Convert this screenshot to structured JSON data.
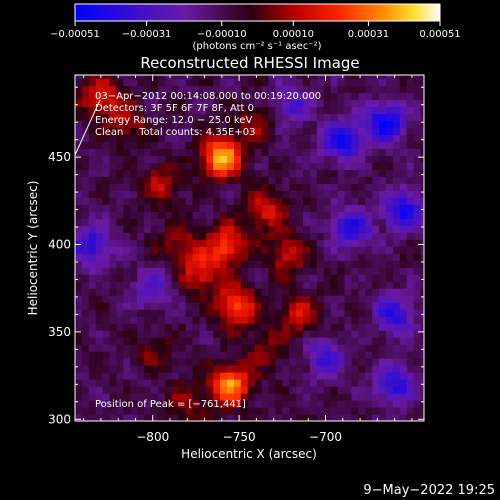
{
  "chart_data": {
    "type": "heatmap",
    "title": "Reconstructed RHESSI Image",
    "xlabel": "Heliocentric X (arcsec)",
    "ylabel": "Heliocentric Y (arcsec)",
    "xlim": [
      -845,
      -643
    ],
    "ylim": [
      299,
      497
    ],
    "x_ticks": [
      -800,
      -750,
      -700
    ],
    "y_ticks": [
      300,
      350,
      400,
      450
    ],
    "x_tick_labels": [
      "−800",
      "−750",
      "−700"
    ],
    "y_tick_labels": [
      "300",
      "350",
      "400",
      "450"
    ],
    "colorbar": {
      "range": [
        -0.00051,
        0.00051
      ],
      "tick_values": [
        -0.00051,
        -0.00031,
        -0.0001,
        0.0001,
        0.00031,
        0.00051
      ],
      "tick_labels": [
        "−0.00051",
        "−0.00031",
        "−0.00010",
        "0.00010",
        "0.00031",
        "0.00051"
      ],
      "unit_label": "(photons cm⁻² s⁻¹ asec⁻²)",
      "colors": [
        "#0000ff",
        "#6a1aa6",
        "#2a0010",
        "#b30000",
        "#ff2200",
        "#ff8800",
        "#ffe033",
        "#ffffff"
      ]
    },
    "annotations": [
      "03−Apr−2012 00:14:08.000 to 00:19:20.000",
      "Detectors: 3F 5F 6F 7F 8F, Att 0",
      "Energy Range: 12.0 − 25.0 keV",
      "Clean     Total counts: 4.35E+03"
    ],
    "peak_label": "Position of Peak = [−761,441]",
    "peak": [
      -761,
      441
    ],
    "hot_spots": [
      {
        "x": -760,
        "y": 450,
        "value": 0.00051
      },
      {
        "x": -755,
        "y": 320,
        "value": 0.00045
      },
      {
        "x": -752,
        "y": 365,
        "value": 0.00038
      },
      {
        "x": -757,
        "y": 400,
        "value": 0.00034
      },
      {
        "x": -772,
        "y": 385,
        "value": 0.00028
      },
      {
        "x": -735,
        "y": 420,
        "value": 0.00026
      },
      {
        "x": -722,
        "y": 395,
        "value": 0.00024
      },
      {
        "x": -715,
        "y": 360,
        "value": 0.00022
      },
      {
        "x": -795,
        "y": 435,
        "value": 0.0002
      },
      {
        "x": -785,
        "y": 400,
        "value": 0.00018
      },
      {
        "x": -740,
        "y": 470,
        "value": 0.00016
      },
      {
        "x": -800,
        "y": 340,
        "value": 0.00012
      },
      {
        "x": -780,
        "y": 310,
        "value": 0.00014
      },
      {
        "x": -735,
        "y": 340,
        "value": 0.00015
      },
      {
        "x": -830,
        "y": 485,
        "value": 0.00028
      },
      {
        "x": -815,
        "y": 470,
        "value": 0.00018
      }
    ],
    "cold_spots": [
      {
        "x": -835,
        "y": 400,
        "value": -0.0003
      },
      {
        "x": -690,
        "y": 460,
        "value": -0.00038
      },
      {
        "x": -665,
        "y": 470,
        "value": -0.0004
      },
      {
        "x": -685,
        "y": 410,
        "value": -0.00032
      },
      {
        "x": -660,
        "y": 360,
        "value": -0.0003
      },
      {
        "x": -700,
        "y": 335,
        "value": -0.00025
      },
      {
        "x": -660,
        "y": 320,
        "value": -0.0003
      },
      {
        "x": -800,
        "y": 375,
        "value": -0.0002
      },
      {
        "x": -720,
        "y": 480,
        "value": -0.00022
      },
      {
        "x": -655,
        "y": 420,
        "value": -0.00035
      }
    ]
  },
  "timestamp": "9−May−2022 19:25"
}
